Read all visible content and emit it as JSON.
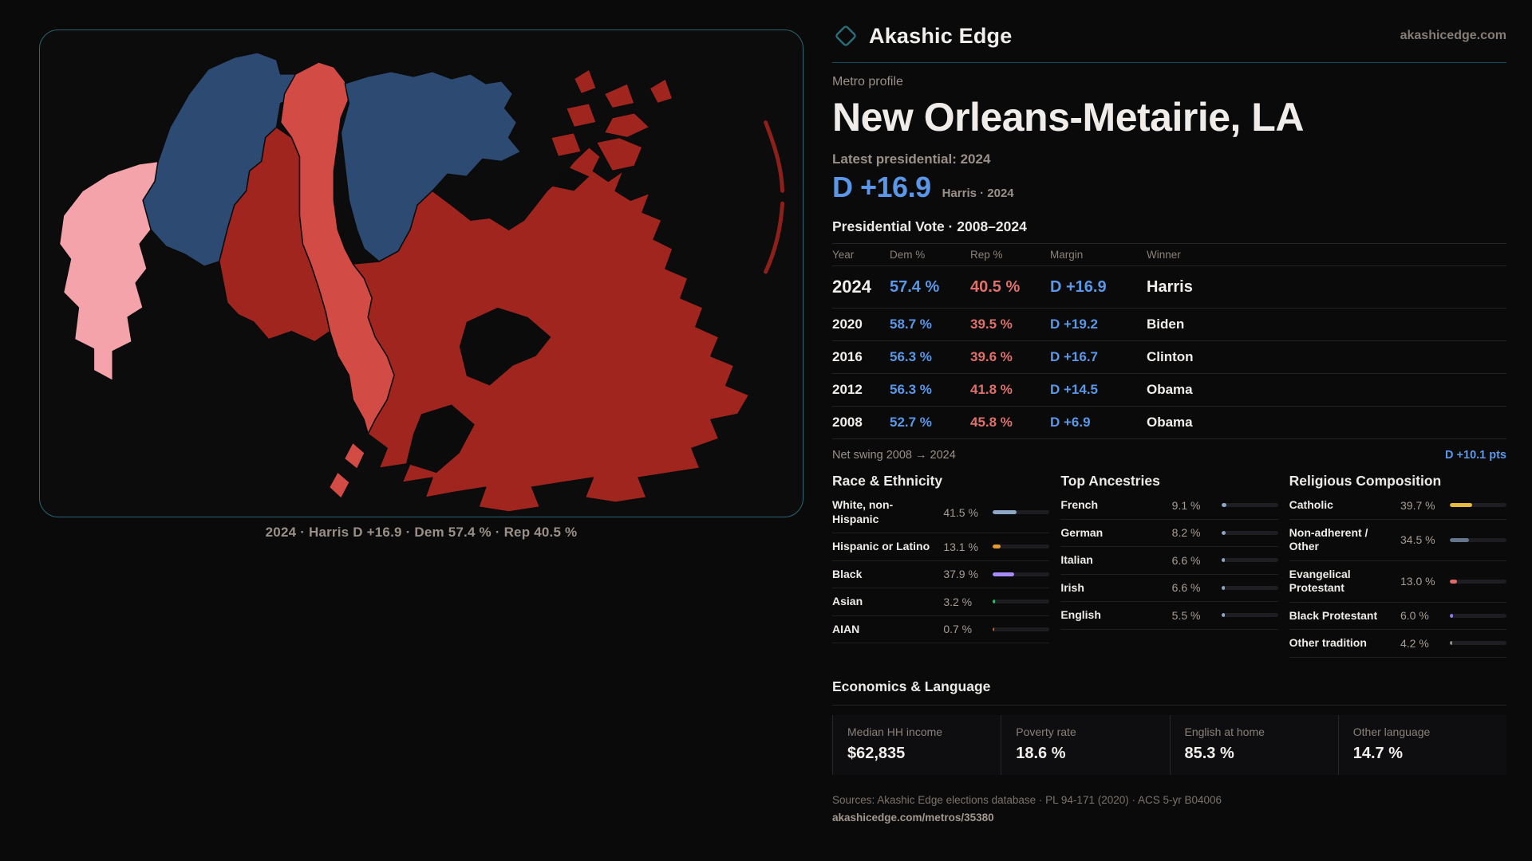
{
  "theme": {
    "dem_blue": "#5b97e8",
    "rep_red": "#e0706a",
    "teal_border": "#2a6570",
    "teal_rule": "#16505c",
    "text_bright": "#f1eeeb",
    "text_muted": "#9b9089",
    "text_faint": "#857c75",
    "map_dem_strong": "#2d4a72",
    "map_dem_lean": "#f5a3ab",
    "map_rep_lean": "#d24b45",
    "map_rep_strong": "#a1251f",
    "map_rep_deep": "#8e201c"
  },
  "brand": {
    "name": "Akashic Edge",
    "domain": "akashicedge.com"
  },
  "profile": {
    "kicker": "Metro profile",
    "title": "New Orleans-Metairie, LA",
    "latest_label": "Latest presidential: 2024",
    "headline_margin": "D +16.9",
    "headline_context": "Harris · 2024"
  },
  "map": {
    "caption": "2024 · Harris D +16.9 · Dem 57.4 % · Rep 40.5 %"
  },
  "table": {
    "title": "Presidential Vote · 2008–2024",
    "columns": [
      "Year",
      "Dem %",
      "Rep %",
      "Margin",
      "Winner"
    ],
    "rows": [
      {
        "year": "2024",
        "dem": "57.4 %",
        "rep": "40.5 %",
        "margin": "D +16.9",
        "winner": "Harris",
        "featured": true
      },
      {
        "year": "2020",
        "dem": "58.7 %",
        "rep": "39.5 %",
        "margin": "D +19.2",
        "winner": "Biden"
      },
      {
        "year": "2016",
        "dem": "56.3 %",
        "rep": "39.6 %",
        "margin": "D +16.7",
        "winner": "Clinton"
      },
      {
        "year": "2012",
        "dem": "56.3 %",
        "rep": "41.8 %",
        "margin": "D +14.5",
        "winner": "Obama"
      },
      {
        "year": "2008",
        "dem": "52.7 %",
        "rep": "45.8 %",
        "margin": "D +6.9",
        "winner": "Obama"
      }
    ]
  },
  "net_swing": {
    "label": "Net swing 2008 → 2024",
    "value": "D +10.1 pts"
  },
  "race": {
    "heading": "Race & Ethnicity",
    "rows": [
      {
        "label": "White, non-Hispanic",
        "value": "41.5 %",
        "pct": 41.5,
        "color": "#8ea7c4"
      },
      {
        "label": "Hispanic or Latino",
        "value": "13.1 %",
        "pct": 13.1,
        "color": "#e2992f"
      },
      {
        "label": "Black",
        "value": "37.9 %",
        "pct": 37.9,
        "color": "#a78bfa"
      },
      {
        "label": "Asian",
        "value": "3.2 %",
        "pct": 3.2,
        "color": "#2fbf71"
      },
      {
        "label": "AIAN",
        "value": "0.7 %",
        "pct": 0.7,
        "color": "#c0622b"
      }
    ]
  },
  "ancestries": {
    "heading": "Top Ancestries",
    "rows": [
      {
        "label": "French",
        "value": "9.1 %",
        "pct": 9.1,
        "color": "#8ea7c4"
      },
      {
        "label": "German",
        "value": "8.2 %",
        "pct": 8.2,
        "color": "#8ea7c4"
      },
      {
        "label": "Italian",
        "value": "6.6 %",
        "pct": 6.6,
        "color": "#8ea7c4"
      },
      {
        "label": "Irish",
        "value": "6.6 %",
        "pct": 6.6,
        "color": "#8ea7c4"
      },
      {
        "label": "English",
        "value": "5.5 %",
        "pct": 5.5,
        "color": "#8ea7c4"
      }
    ]
  },
  "religion": {
    "heading": "Religious Composition",
    "rows": [
      {
        "label": "Catholic",
        "value": "39.7 %",
        "pct": 39.7,
        "color": "#e4b93d"
      },
      {
        "label": "Non-adherent / Other",
        "value": "34.5 %",
        "pct": 34.5,
        "color": "#65758b"
      },
      {
        "label": "Evangelical Protestant",
        "value": "13.0 %",
        "pct": 13.0,
        "color": "#e06a65"
      },
      {
        "label": "Black Protestant",
        "value": "6.0 %",
        "pct": 6.0,
        "color": "#8b7ae8"
      },
      {
        "label": "Other tradition",
        "value": "4.2 %",
        "pct": 4.2,
        "color": "#8f8f96"
      }
    ]
  },
  "economics": {
    "heading": "Economics & Language",
    "stats": [
      {
        "label": "Median HH income",
        "value": "$62,835"
      },
      {
        "label": "Poverty rate",
        "value": "18.6 %"
      },
      {
        "label": "English at home",
        "value": "85.3 %"
      },
      {
        "label": "Other language",
        "value": "14.7 %"
      }
    ]
  },
  "footer": {
    "sources": "Sources: Akashic Edge elections database · PL 94-171 (2020) · ACS 5-yr B04006",
    "permalink": "akashicedge.com/metros/35380"
  }
}
